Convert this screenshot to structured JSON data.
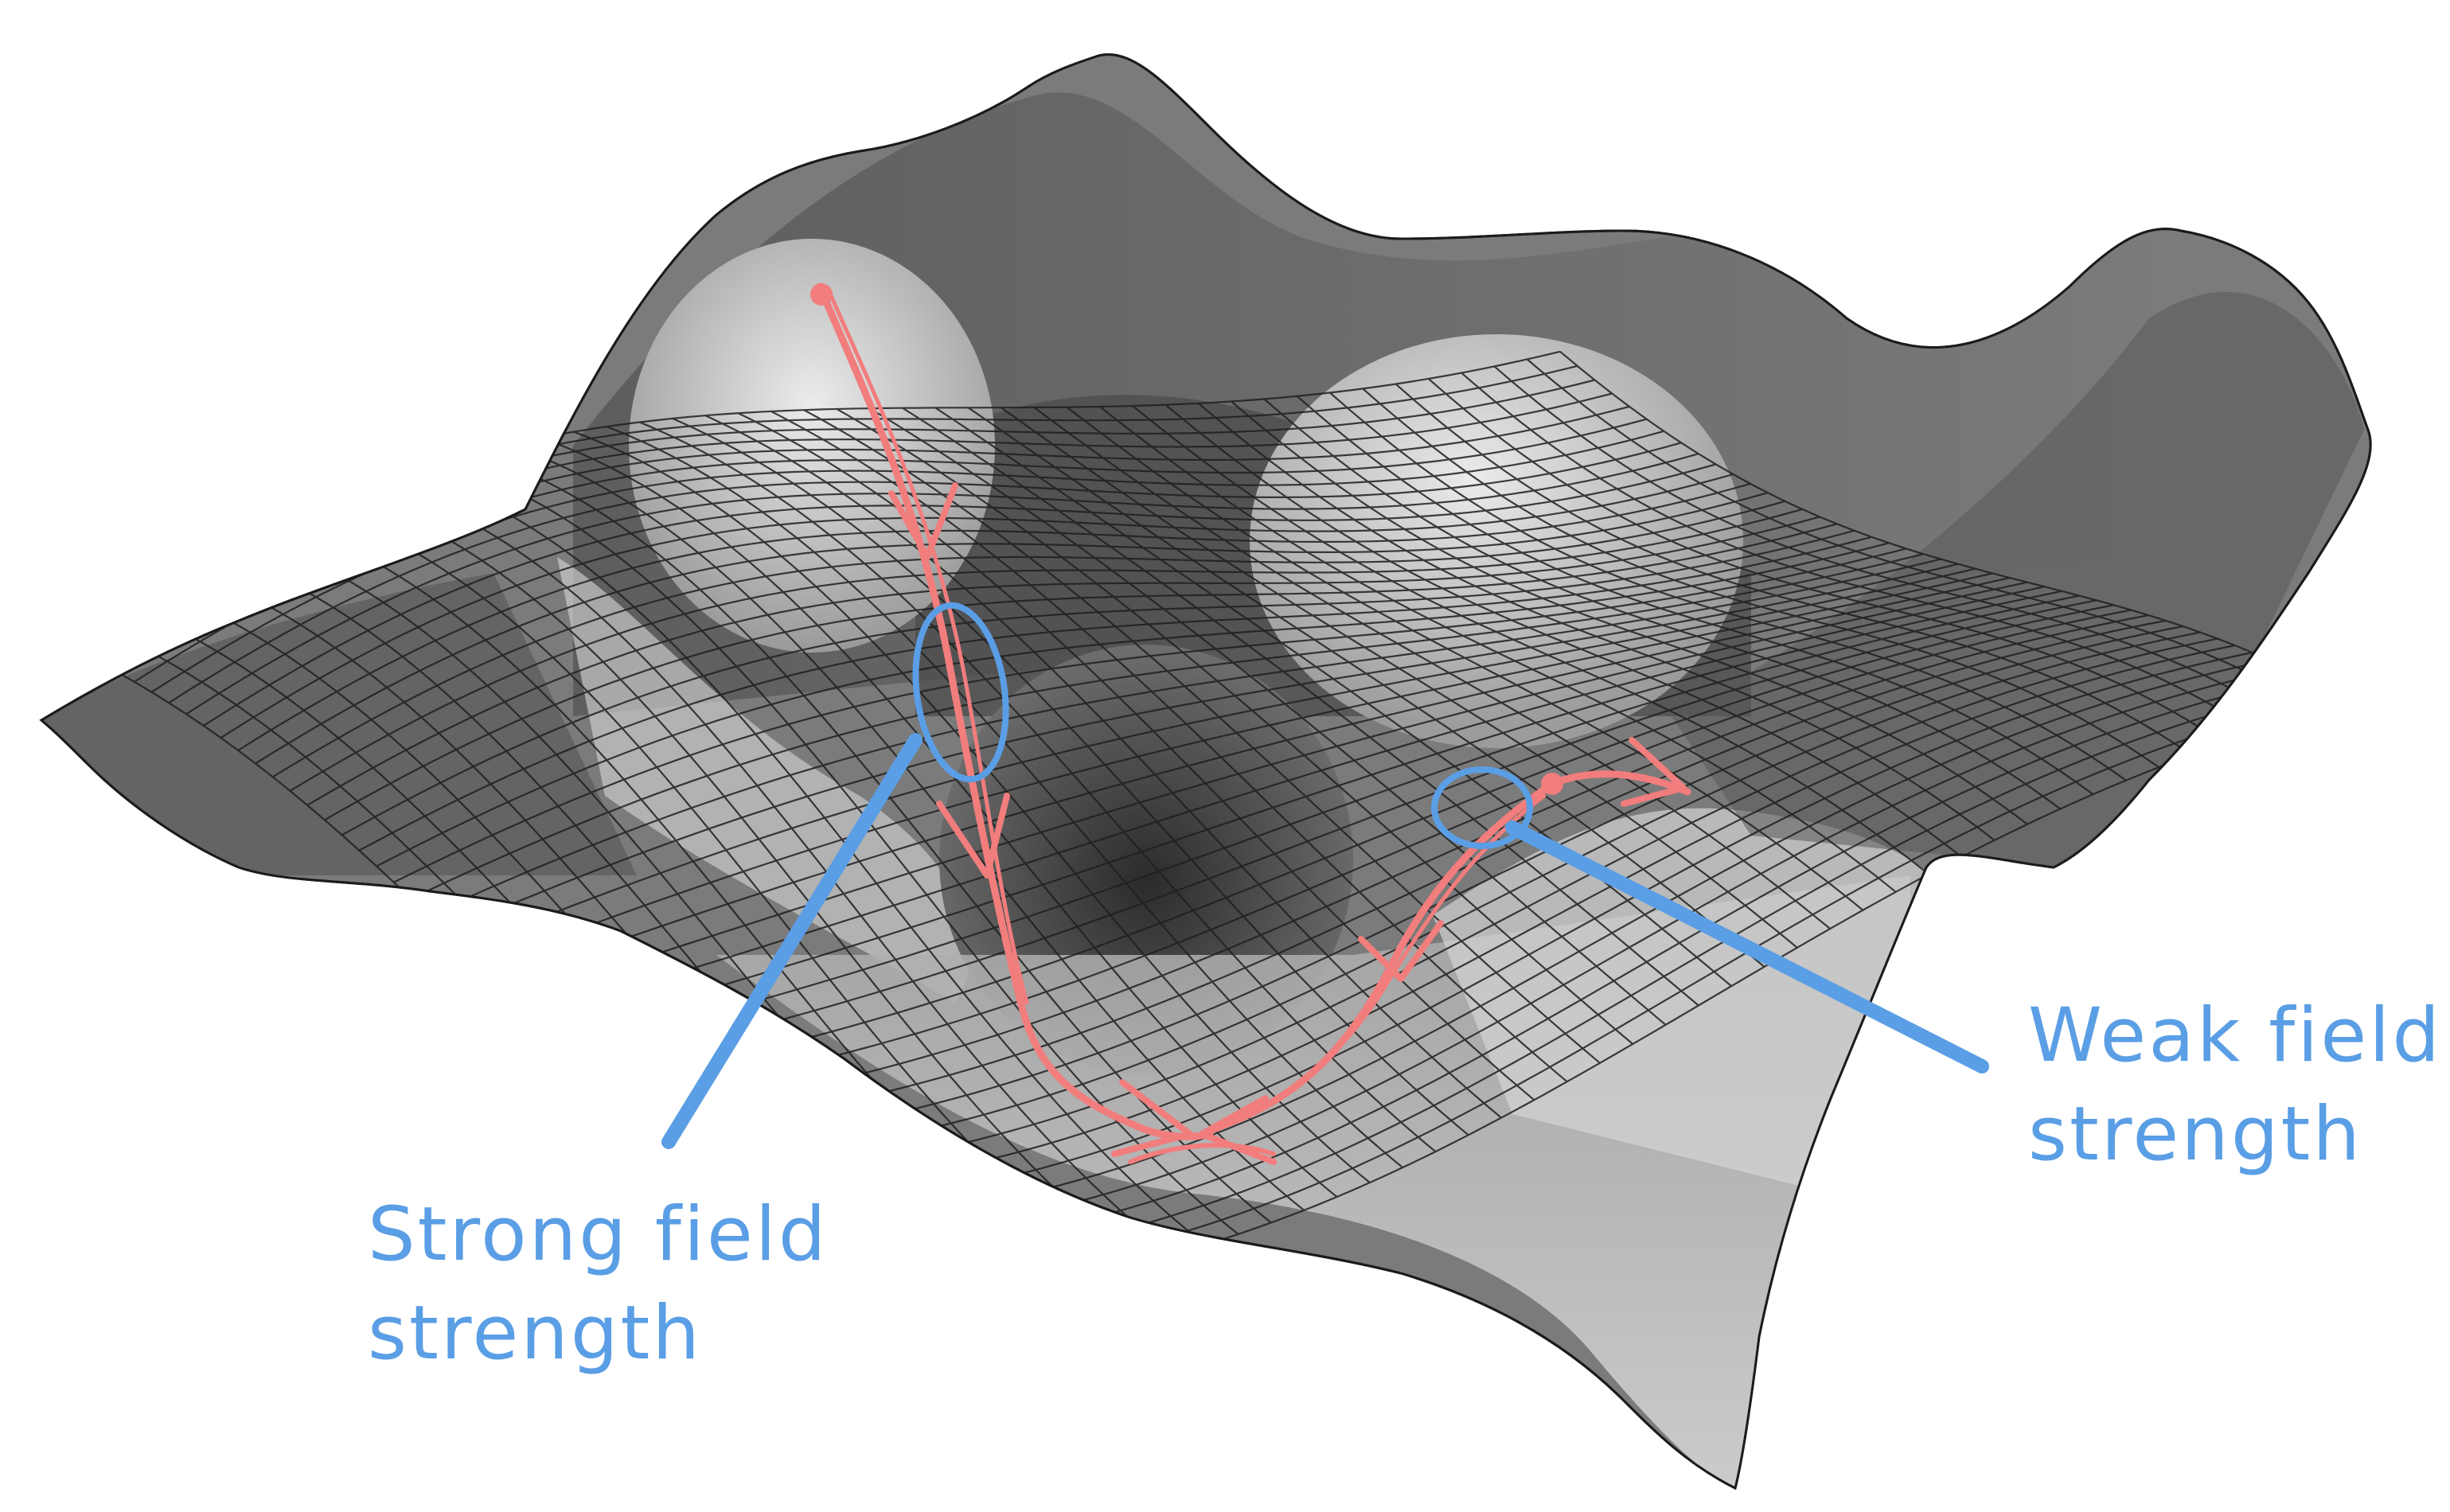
{
  "annotations": {
    "strong": {
      "line1": "Strong field",
      "line2": "strength"
    },
    "weak": {
      "line1": "Weak field",
      "line2": "strength"
    }
  },
  "colors": {
    "background": "#ffffff",
    "surface_light": "#e2e2e2",
    "surface_mid": "#8a8a8a",
    "surface_dark": "#3a3a3a",
    "mesh_lines": "#1f1f1f",
    "trajectory": "#f27d7d",
    "annotation": "#5a9ee5"
  },
  "icons": {
    "arrowheads": "chevron-arrow-icon",
    "start_points": "dot-icon"
  }
}
